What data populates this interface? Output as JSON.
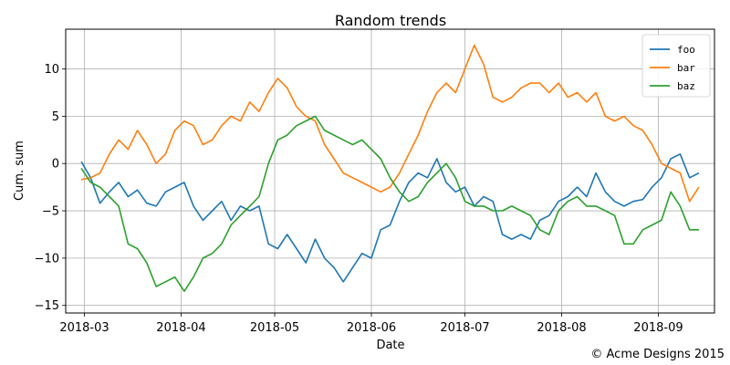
{
  "chart_data": {
    "type": "line",
    "title": "Random trends",
    "xlabel": "Date",
    "ylabel": "Cum. sum",
    "grid": true,
    "legend_position": "top-right",
    "x": [
      "2018-02-28",
      "2018-03-03",
      "2018-03-06",
      "2018-03-09",
      "2018-03-12",
      "2018-03-15",
      "2018-03-18",
      "2018-03-21",
      "2018-03-24",
      "2018-03-27",
      "2018-03-30",
      "2018-04-02",
      "2018-04-05",
      "2018-04-08",
      "2018-04-11",
      "2018-04-14",
      "2018-04-17",
      "2018-04-20",
      "2018-04-23",
      "2018-04-26",
      "2018-04-29",
      "2018-05-02",
      "2018-05-05",
      "2018-05-08",
      "2018-05-11",
      "2018-05-14",
      "2018-05-17",
      "2018-05-20",
      "2018-05-23",
      "2018-05-26",
      "2018-05-29",
      "2018-06-01",
      "2018-06-04",
      "2018-06-07",
      "2018-06-10",
      "2018-06-13",
      "2018-06-16",
      "2018-06-19",
      "2018-06-22",
      "2018-06-25",
      "2018-06-28",
      "2018-07-01",
      "2018-07-04",
      "2018-07-07",
      "2018-07-10",
      "2018-07-13",
      "2018-07-16",
      "2018-07-19",
      "2018-07-22",
      "2018-07-25",
      "2018-07-28",
      "2018-07-31",
      "2018-08-03",
      "2018-08-06",
      "2018-08-09",
      "2018-08-12",
      "2018-08-15",
      "2018-08-18",
      "2018-08-21",
      "2018-08-24",
      "2018-08-27",
      "2018-08-30",
      "2018-09-02",
      "2018-09-05",
      "2018-09-08",
      "2018-09-11",
      "2018-09-14"
    ],
    "series": [
      {
        "name": "foo",
        "color": "#1f77b4",
        "values": [
          0.2,
          -1.5,
          -4.2,
          -3.0,
          -2.0,
          -3.5,
          -2.8,
          -4.2,
          -4.5,
          -3.0,
          -2.5,
          -2.0,
          -4.5,
          -6.0,
          -5.0,
          -4.0,
          -6.0,
          -4.5,
          -5.0,
          -4.5,
          -8.5,
          -9.0,
          -7.5,
          -9.0,
          -10.5,
          -8.0,
          -10.0,
          -11.0,
          -12.5,
          -11.0,
          -9.5,
          -10.0,
          -7.0,
          -6.5,
          -4.0,
          -2.0,
          -1.0,
          -1.5,
          0.5,
          -2.0,
          -3.0,
          -2.5,
          -4.5,
          -3.5,
          -4.0,
          -7.5,
          -8.0,
          -7.5,
          -8.0,
          -6.0,
          -5.5,
          -4.0,
          -3.5,
          -2.5,
          -3.5,
          -1.0,
          -3.0,
          -4.0,
          -4.5,
          -4.0,
          -3.8,
          -2.5,
          -1.5,
          0.5,
          1.0,
          -1.5,
          -1.0
        ]
      },
      {
        "name": "bar",
        "color": "#ff7f0e",
        "values": [
          -1.7,
          -1.5,
          -1.0,
          1.0,
          2.5,
          1.5,
          3.5,
          2.0,
          0.0,
          1.0,
          3.5,
          4.5,
          4.0,
          2.0,
          2.5,
          4.0,
          5.0,
          4.5,
          6.5,
          5.5,
          7.5,
          9.0,
          8.0,
          6.0,
          5.0,
          4.5,
          2.0,
          0.5,
          -1.0,
          -1.5,
          -2.0,
          -2.5,
          -3.0,
          -2.5,
          -1.0,
          1.0,
          3.0,
          5.5,
          7.5,
          8.5,
          7.5,
          10.0,
          12.5,
          10.5,
          7.0,
          6.5,
          7.0,
          8.0,
          8.5,
          8.5,
          7.5,
          8.5,
          7.0,
          7.5,
          6.5,
          7.5,
          5.0,
          4.5,
          5.0,
          4.0,
          3.5,
          2.0,
          0.0,
          -0.5,
          -1.0,
          -4.0,
          -2.5
        ]
      },
      {
        "name": "baz",
        "color": "#2ca02c",
        "values": [
          -0.5,
          -2.0,
          -2.5,
          -3.5,
          -4.5,
          -8.5,
          -9.0,
          -10.5,
          -13.0,
          -12.5,
          -12.0,
          -13.5,
          -12.0,
          -10.0,
          -9.5,
          -8.5,
          -6.5,
          -5.5,
          -4.5,
          -3.5,
          0.0,
          2.5,
          3.0,
          4.0,
          4.5,
          5.0,
          3.5,
          3.0,
          2.5,
          2.0,
          2.5,
          1.5,
          0.5,
          -1.5,
          -3.0,
          -4.0,
          -3.5,
          -2.0,
          -1.0,
          0.0,
          -1.5,
          -4.0,
          -4.5,
          -4.5,
          -5.0,
          -5.0,
          -4.5,
          -5.0,
          -5.5,
          -7.0,
          -7.5,
          -5.0,
          -4.0,
          -3.5,
          -4.5,
          -4.5,
          -5.0,
          -5.5,
          -8.5,
          -8.5,
          -7.0,
          -6.5,
          -6.0,
          -3.0,
          -4.5,
          -7.0,
          -7.0
        ]
      }
    ],
    "xticks": [
      "2018-03",
      "2018-04",
      "2018-05",
      "2018-06",
      "2018-07",
      "2018-08",
      "2018-09"
    ],
    "xtick_dates": [
      "2018-03-01",
      "2018-04-01",
      "2018-05-01",
      "2018-06-01",
      "2018-07-01",
      "2018-08-01",
      "2018-09-01"
    ],
    "yticks": [
      -15,
      -10,
      -5,
      0,
      5,
      10
    ],
    "ytick_labels": [
      "−15",
      "−10",
      "−5",
      "0",
      "5",
      "10"
    ],
    "ylim": [
      -15.8,
      14.2
    ],
    "xlim": [
      "2018-02-23",
      "2018-09-19"
    ]
  },
  "footer": {
    "credit": "© Acme Designs 2015"
  }
}
